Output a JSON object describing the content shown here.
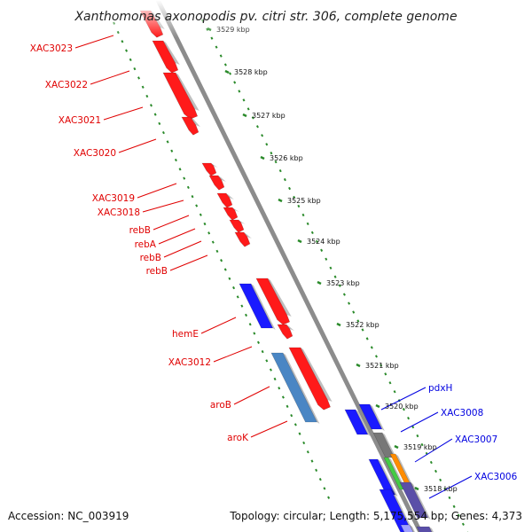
{
  "title": "Xanthomonas axonopodis pv. citri str. 306, complete genome",
  "footer": {
    "accession": "Accession: NC_003919",
    "summary": "Topology: circular; Length: 5,175,554 bp; Genes: 4,373"
  },
  "colors": {
    "forward_gene": "#ff1a1a",
    "reverse_gene": "#1a1aff",
    "rna_gene": "#4a86c4",
    "label_red": "#e00000",
    "label_blue": "#0000e0",
    "backbone": "#8c8c8c",
    "tick": "#2a8a2a"
  },
  "ticks": [
    {
      "label": "3529 kbp"
    },
    {
      "label": "3528 kbp"
    },
    {
      "label": "3527 kbp"
    },
    {
      "label": "3526 kbp"
    },
    {
      "label": "3525 kbp"
    },
    {
      "label": "3524 kbp"
    },
    {
      "label": "3523 kbp"
    },
    {
      "label": "3522 kbp"
    },
    {
      "label": "3521 kbp"
    },
    {
      "label": "3520 kbp"
    },
    {
      "label": "3519 kbp"
    },
    {
      "label": "3518 kbp"
    }
  ],
  "gene_labels_left": [
    "XAC3023",
    "XAC3022",
    "XAC3021",
    "XAC3020",
    "XAC3019",
    "XAC3018",
    "rebB",
    "rebA",
    "rebB",
    "rebB",
    "hemE",
    "XAC3012",
    "aroB",
    "aroK"
  ],
  "gene_labels_right": [
    "pdxH",
    "XAC3008",
    "XAC3007",
    "XAC3006"
  ]
}
